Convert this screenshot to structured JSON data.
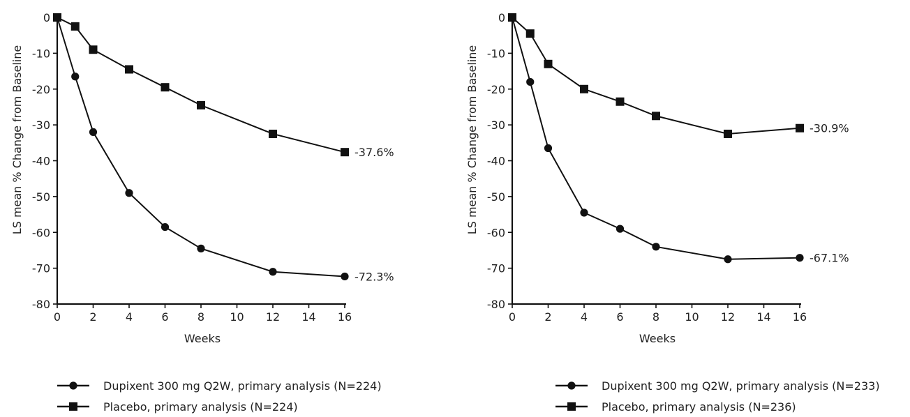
{
  "chart_data": [
    {
      "type": "line",
      "title": "",
      "xlabel": "Weeks",
      "ylabel": "LS mean % Change from Baseline",
      "xlim": [
        0,
        16
      ],
      "ylim": [
        -80,
        0
      ],
      "xticks": [
        0,
        2,
        4,
        6,
        8,
        10,
        12,
        14,
        16
      ],
      "yticks": [
        0,
        -10,
        -20,
        -30,
        -40,
        -50,
        -60,
        -70,
        -80
      ],
      "grid": false,
      "legend_position": "bottom",
      "series": [
        {
          "name": "Dupixent 300 mg Q2W, primary analysis (N=224)",
          "marker": "circle",
          "x": [
            0,
            1,
            2,
            4,
            6,
            8,
            12,
            16
          ],
          "y": [
            0,
            -16.5,
            -32,
            -49,
            -58.5,
            -64.5,
            -71,
            -72.3
          ],
          "end_label": "-72.3%"
        },
        {
          "name": "Placebo, primary analysis (N=224)",
          "marker": "square",
          "x": [
            0,
            1,
            2,
            4,
            6,
            8,
            12,
            16
          ],
          "y": [
            0,
            -2.5,
            -9,
            -14.5,
            -19.5,
            -24.5,
            -32.5,
            -37.6
          ],
          "end_label": "-37.6%"
        }
      ]
    },
    {
      "type": "line",
      "title": "",
      "xlabel": "Weeks",
      "ylabel": "LS mean % Change from Baseline",
      "xlim": [
        0,
        16
      ],
      "ylim": [
        -80,
        0
      ],
      "xticks": [
        0,
        2,
        4,
        6,
        8,
        10,
        12,
        14,
        16
      ],
      "yticks": [
        0,
        -10,
        -20,
        -30,
        -40,
        -50,
        -60,
        -70,
        -80
      ],
      "grid": false,
      "legend_position": "bottom",
      "series": [
        {
          "name": "Dupixent 300 mg Q2W, primary analysis (N=233)",
          "marker": "circle",
          "x": [
            0,
            1,
            2,
            4,
            6,
            8,
            12,
            16
          ],
          "y": [
            0,
            -18,
            -36.5,
            -54.5,
            -59,
            -64,
            -67.5,
            -67.1
          ],
          "end_label": "-67.1%"
        },
        {
          "name": "Placebo, primary analysis (N=236)",
          "marker": "square",
          "x": [
            0,
            1,
            2,
            4,
            6,
            8,
            12,
            16
          ],
          "y": [
            0,
            -4.5,
            -13,
            -20,
            -23.5,
            -27.5,
            -32.5,
            -30.9
          ],
          "end_label": "-30.9%"
        }
      ]
    }
  ]
}
